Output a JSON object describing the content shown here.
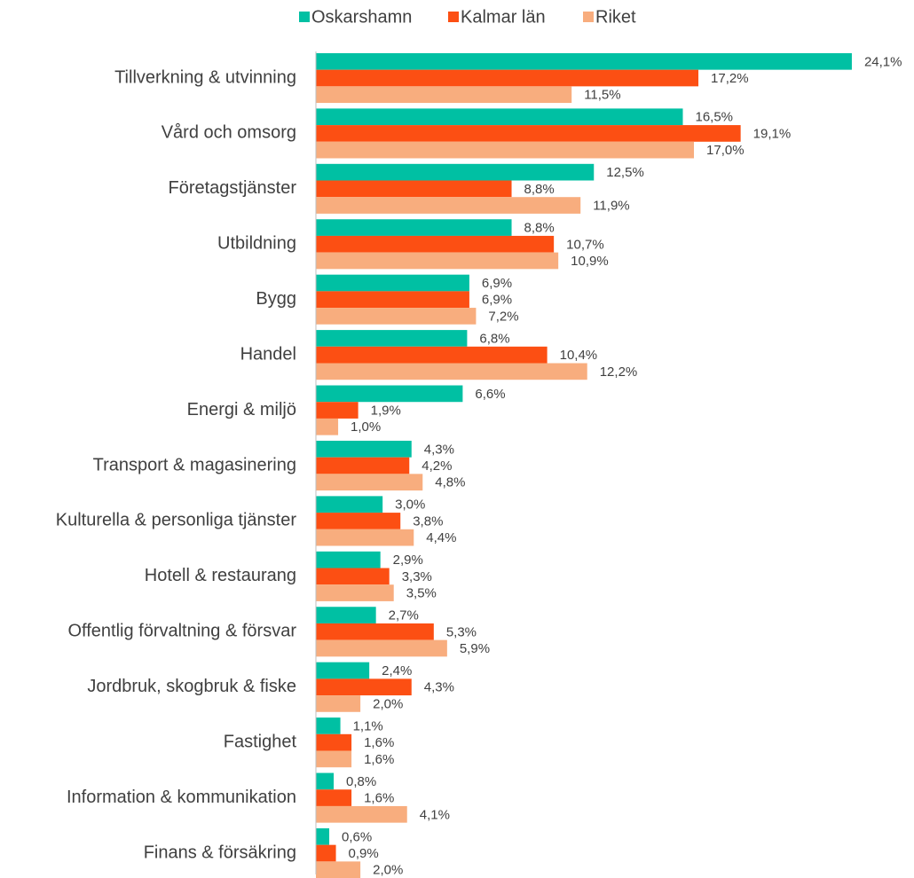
{
  "chart_data": {
    "type": "bar",
    "orientation": "horizontal",
    "categories": [
      "Tillverkning & utvinning",
      "Vård och omsorg",
      "Företagstjänster",
      "Utbildning",
      "Bygg",
      "Handel",
      "Energi & miljö",
      "Transport & magasinering",
      "Kulturella & personliga tjänster",
      "Hotell & restaurang",
      "Offentlig förvaltning & försvar",
      "Jordbruk, skogbruk & fiske",
      "Fastighet",
      "Information & kommunikation",
      "Finans & försäkring"
    ],
    "series": [
      {
        "name": "Oskarshamn",
        "color": "#00c0a3",
        "values": [
          24.1,
          16.5,
          12.5,
          8.8,
          6.9,
          6.8,
          6.6,
          4.3,
          3.0,
          2.9,
          2.7,
          2.4,
          1.1,
          0.8,
          0.6
        ],
        "value_labels": [
          "24,1%",
          "16,5%",
          "12,5%",
          "8,8%",
          "6,9%",
          "6,8%",
          "6,6%",
          "4,3%",
          "3,0%",
          "2,9%",
          "2,7%",
          "2,4%",
          "1,1%",
          "0,8%",
          "0,6%"
        ]
      },
      {
        "name": "Kalmar län",
        "color": "#fc4f13",
        "values": [
          17.2,
          19.1,
          8.8,
          10.7,
          6.9,
          10.4,
          1.9,
          4.2,
          3.8,
          3.3,
          5.3,
          4.3,
          1.6,
          1.6,
          0.9
        ],
        "value_labels": [
          "17,2%",
          "19,1%",
          "8,8%",
          "10,7%",
          "6,9%",
          "10,4%",
          "1,9%",
          "4,2%",
          "3,8%",
          "3,3%",
          "5,3%",
          "4,3%",
          "1,6%",
          "1,6%",
          "0,9%"
        ]
      },
      {
        "name": "Riket",
        "color": "#f8ad7e",
        "values": [
          11.5,
          17.0,
          11.9,
          10.9,
          7.2,
          12.2,
          1.0,
          4.8,
          4.4,
          3.5,
          5.9,
          2.0,
          1.6,
          4.1,
          2.0
        ],
        "value_labels": [
          "11,5%",
          "17,0%",
          "11,9%",
          "10,9%",
          "7,2%",
          "12,2%",
          "1,0%",
          "4,8%",
          "4,4%",
          "3,5%",
          "5,9%",
          "2,0%",
          "1,6%",
          "4,1%",
          "2,0%"
        ]
      }
    ],
    "legend": "top"
  }
}
